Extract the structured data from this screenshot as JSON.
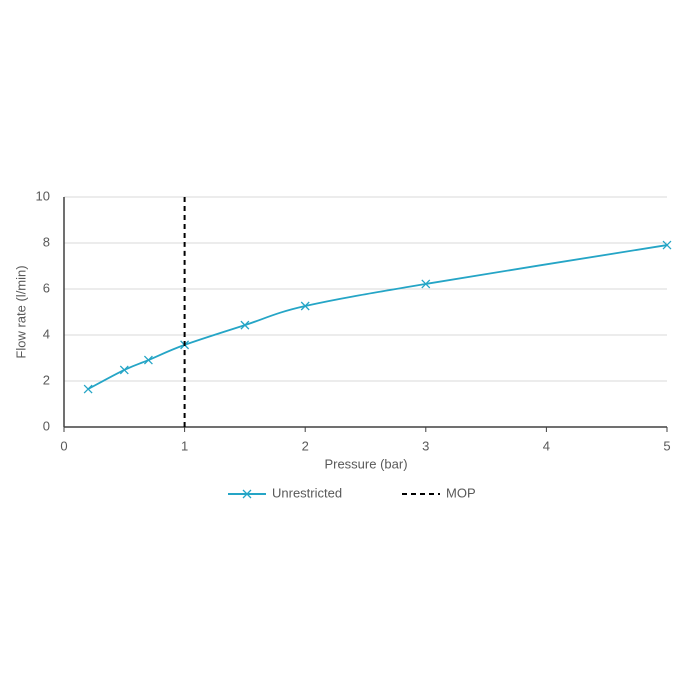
{
  "chart_data": {
    "type": "line",
    "x_label": "Pressure (bar)",
    "y_label": "Flow rate (l/min)",
    "xlim": [
      0,
      5
    ],
    "xticks": [
      0,
      1,
      2,
      3,
      4,
      5
    ],
    "ylim": [
      0,
      10
    ],
    "yticks": [
      0,
      2,
      4,
      6,
      8,
      10
    ],
    "grid": true,
    "legend": "bottom",
    "series": [
      {
        "name": "Unrestricted",
        "color": "#25a5c6",
        "marker": "x",
        "dashed": false,
        "x": [
          0.2,
          0.5,
          0.7,
          1,
          1.5,
          2,
          3,
          5
        ],
        "values": [
          1.65,
          2.48,
          2.91,
          3.57,
          4.43,
          5.26,
          6.22,
          7.91
        ]
      },
      {
        "name": "MOP",
        "color": "#000000",
        "marker": "none",
        "dashed": true,
        "x": [
          1,
          1
        ],
        "values": [
          0,
          10
        ]
      }
    ]
  }
}
